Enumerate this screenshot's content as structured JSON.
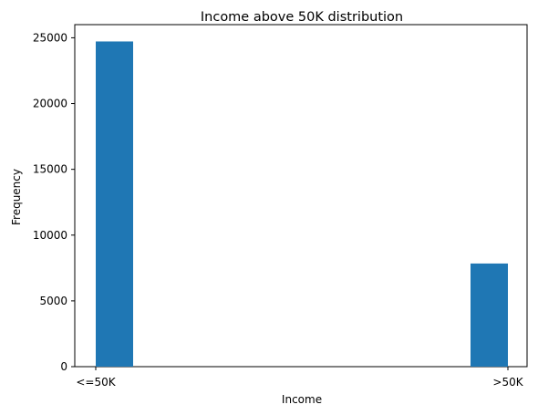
{
  "chart_data": {
    "type": "bar",
    "title": "Income above 50K distribution",
    "xlabel": "Income",
    "ylabel": "Frequency",
    "categories": [
      "<=50K",
      ">50K"
    ],
    "values": [
      24720,
      7841
    ],
    "ylim": [
      0,
      26000
    ],
    "yticks": [
      0,
      5000,
      10000,
      15000,
      20000,
      25000
    ],
    "grid": false,
    "legend": "none",
    "bar_color": "#1f77b4"
  }
}
